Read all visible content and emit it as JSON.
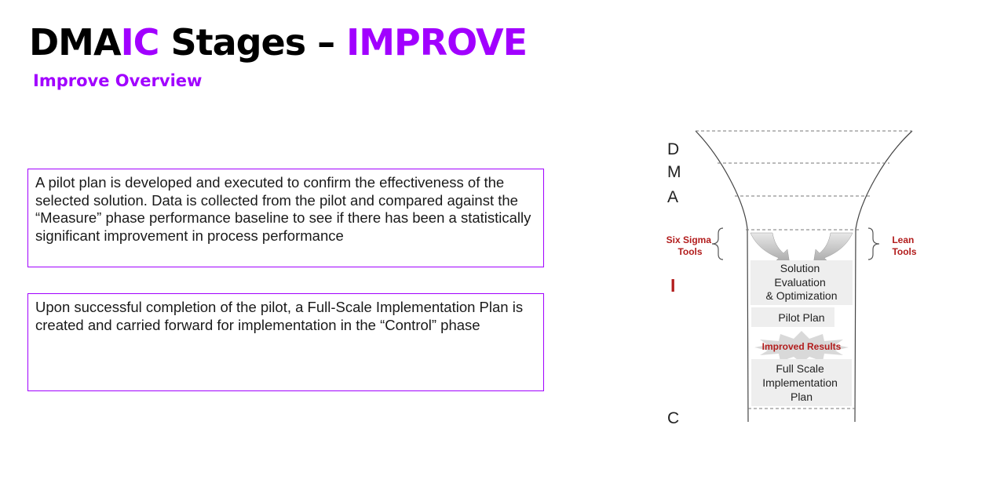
{
  "header": {
    "title_prefix_1": "DMA",
    "title_highlight_1": "IC",
    "title_prefix_2": " Stages – ",
    "title_highlight_2": "IMPROVE",
    "subtitle": "Improve Overview"
  },
  "boxes": [
    {
      "text": "A pilot plan is developed and executed to confirm the effectiveness of the selected solution. Data is collected from the pilot and compared against the “Measure” phase performance baseline to see if there has been a statistically significant improvement in process performance"
    },
    {
      "text": "Upon successful completion of the pilot, a Full-Scale Implementation Plan is created and carried forward for implementation in the “Control” phase"
    }
  ],
  "funnel": {
    "letters": {
      "d": "D",
      "m": "M",
      "a": "A",
      "i": "I",
      "c": "C"
    },
    "left_label": [
      "Six Sigma",
      "Tools"
    ],
    "right_label": [
      "Lean",
      "Tools"
    ],
    "solution": [
      "Solution",
      "Evaluation",
      "& Optimization"
    ],
    "pilot_plan": "Pilot Plan",
    "improved_results": "Improved Results",
    "full_scale": [
      "Full Scale",
      "Implementation",
      "Plan"
    ]
  },
  "colors": {
    "accent": "#a100ff",
    "dark_red": "#b21c1c"
  }
}
